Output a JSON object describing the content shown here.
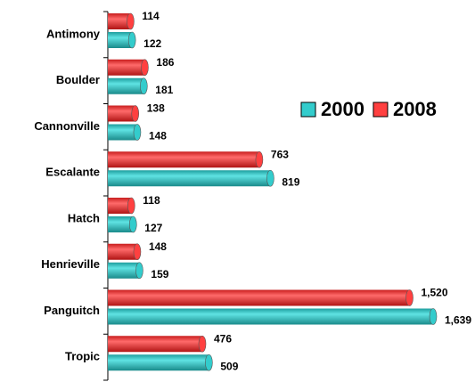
{
  "chart_data": {
    "type": "bar",
    "orientation": "horizontal",
    "categories": [
      "Antimony",
      "Boulder",
      "Cannonville",
      "Escalante",
      "Hatch",
      "Henrieville",
      "Panguitch",
      "Tropic"
    ],
    "series": [
      {
        "name": "2000",
        "color": "#33cccc",
        "values": [
          122,
          181,
          148,
          819,
          127,
          159,
          1639,
          509
        ],
        "value_labels": [
          "122",
          "181",
          "148",
          "819",
          "127",
          "159",
          "1,639",
          "509"
        ]
      },
      {
        "name": "2008",
        "color": "#ff4040",
        "values": [
          114,
          186,
          138,
          763,
          118,
          148,
          1520,
          476
        ],
        "value_labels": [
          "114",
          "186",
          "138",
          "763",
          "118",
          "148",
          "1,520",
          "476"
        ]
      }
    ],
    "legend": "right"
  }
}
